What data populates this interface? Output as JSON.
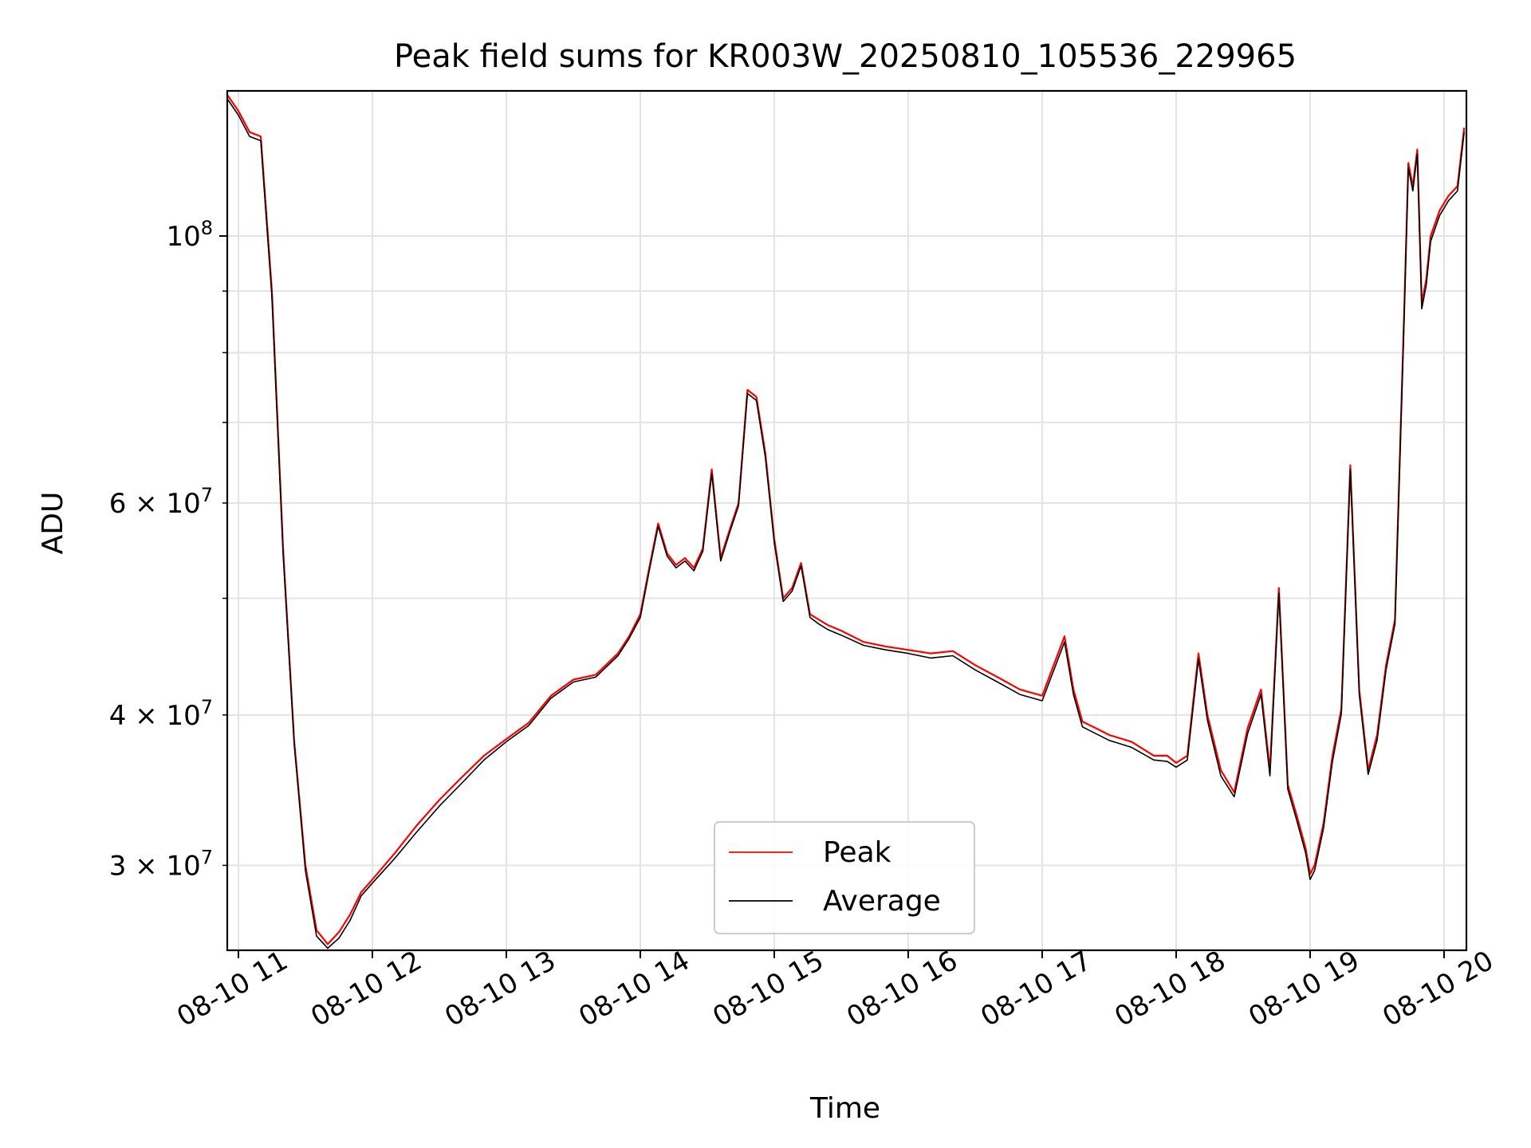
{
  "chart_data": {
    "type": "line",
    "title": "Peak field sums for KR003W_20250810_105536_229965",
    "xlabel": "Time",
    "ylabel": "ADU",
    "y_scale": "log",
    "grid": true,
    "legend_position": "bottom-center",
    "xlim": [
      "2025-08-10 10:55",
      "2025-08-10 20:10"
    ],
    "ylim": [
      25500000,
      132000000
    ],
    "x_ticks": [
      {
        "value": "2025-08-10 11:00",
        "label": "08-10 11"
      },
      {
        "value": "2025-08-10 12:00",
        "label": "08-10 12"
      },
      {
        "value": "2025-08-10 13:00",
        "label": "08-10 13"
      },
      {
        "value": "2025-08-10 14:00",
        "label": "08-10 14"
      },
      {
        "value": "2025-08-10 15:00",
        "label": "08-10 15"
      },
      {
        "value": "2025-08-10 16:00",
        "label": "08-10 16"
      },
      {
        "value": "2025-08-10 17:00",
        "label": "08-10 17"
      },
      {
        "value": "2025-08-10 18:00",
        "label": "08-10 18"
      },
      {
        "value": "2025-08-10 19:00",
        "label": "08-10 19"
      },
      {
        "value": "2025-08-10 20:00",
        "label": "08-10 20"
      }
    ],
    "y_ticks_major": [
      {
        "value": 100000000,
        "mantissa": "",
        "base": "10",
        "exp": "8"
      }
    ],
    "y_ticks_minor": [
      {
        "value": 30000000,
        "mantissa": "3",
        "base": "10",
        "exp": "7"
      },
      {
        "value": 40000000,
        "mantissa": "4",
        "base": "10",
        "exp": "7"
      },
      {
        "value": 50000000,
        "mantissa": "",
        "base": "",
        "exp": ""
      },
      {
        "value": 60000000,
        "mantissa": "6",
        "base": "10",
        "exp": "7"
      },
      {
        "value": 70000000,
        "mantissa": "",
        "base": "",
        "exp": ""
      },
      {
        "value": 80000000,
        "mantissa": "",
        "base": "",
        "exp": ""
      },
      {
        "value": 90000000,
        "mantissa": "",
        "base": "",
        "exp": ""
      }
    ],
    "series": [
      {
        "name": "Peak",
        "color": "#ff0000",
        "x": [
          "2025-08-10 10:55",
          "2025-08-10 11:00",
          "2025-08-10 11:05",
          "2025-08-10 11:10",
          "2025-08-10 11:15",
          "2025-08-10 11:20",
          "2025-08-10 11:25",
          "2025-08-10 11:30",
          "2025-08-10 11:35",
          "2025-08-10 11:40",
          "2025-08-10 11:45",
          "2025-08-10 11:50",
          "2025-08-10 11:55",
          "2025-08-10 12:00",
          "2025-08-10 12:10",
          "2025-08-10 12:20",
          "2025-08-10 12:30",
          "2025-08-10 12:40",
          "2025-08-10 12:50",
          "2025-08-10 13:00",
          "2025-08-10 13:10",
          "2025-08-10 13:20",
          "2025-08-10 13:30",
          "2025-08-10 13:40",
          "2025-08-10 13:50",
          "2025-08-10 13:55",
          "2025-08-10 14:00",
          "2025-08-10 14:04",
          "2025-08-10 14:08",
          "2025-08-10 14:12",
          "2025-08-10 14:16",
          "2025-08-10 14:20",
          "2025-08-10 14:24",
          "2025-08-10 14:28",
          "2025-08-10 14:32",
          "2025-08-10 14:36",
          "2025-08-10 14:40",
          "2025-08-10 14:44",
          "2025-08-10 14:48",
          "2025-08-10 14:52",
          "2025-08-10 14:56",
          "2025-08-10 15:00",
          "2025-08-10 15:04",
          "2025-08-10 15:08",
          "2025-08-10 15:12",
          "2025-08-10 15:16",
          "2025-08-10 15:20",
          "2025-08-10 15:24",
          "2025-08-10 15:30",
          "2025-08-10 15:40",
          "2025-08-10 15:50",
          "2025-08-10 16:00",
          "2025-08-10 16:10",
          "2025-08-10 16:20",
          "2025-08-10 16:30",
          "2025-08-10 16:40",
          "2025-08-10 16:50",
          "2025-08-10 17:00",
          "2025-08-10 17:10",
          "2025-08-10 17:14",
          "2025-08-10 17:18",
          "2025-08-10 17:24",
          "2025-08-10 17:30",
          "2025-08-10 17:40",
          "2025-08-10 17:50",
          "2025-08-10 17:56",
          "2025-08-10 18:00",
          "2025-08-10 18:05",
          "2025-08-10 18:10",
          "2025-08-10 18:14",
          "2025-08-10 18:20",
          "2025-08-10 18:26",
          "2025-08-10 18:32",
          "2025-08-10 18:38",
          "2025-08-10 18:42",
          "2025-08-10 18:46",
          "2025-08-10 18:50",
          "2025-08-10 18:54",
          "2025-08-10 18:58",
          "2025-08-10 19:00",
          "2025-08-10 19:02",
          "2025-08-10 19:06",
          "2025-08-10 19:10",
          "2025-08-10 19:14",
          "2025-08-10 19:18",
          "2025-08-10 19:22",
          "2025-08-10 19:26",
          "2025-08-10 19:30",
          "2025-08-10 19:34",
          "2025-08-10 19:38",
          "2025-08-10 19:42",
          "2025-08-10 19:44",
          "2025-08-10 19:46",
          "2025-08-10 19:48",
          "2025-08-10 19:50",
          "2025-08-10 19:52",
          "2025-08-10 19:54",
          "2025-08-10 19:58",
          "2025-08-10 20:02",
          "2025-08-10 20:06",
          "2025-08-10 20:09"
        ],
        "values": [
          131000000,
          127000000,
          122000000,
          121000000,
          90000000,
          55000000,
          38000000,
          30000000,
          26500000,
          25800000,
          26400000,
          27300000,
          28500000,
          29200000,
          30700000,
          32400000,
          34000000,
          35500000,
          37000000,
          38200000,
          39400000,
          41500000,
          42800000,
          43200000,
          45000000,
          46500000,
          48500000,
          53000000,
          57700000,
          54500000,
          53300000,
          54000000,
          53000000,
          55000000,
          64000000,
          54000000,
          57000000,
          60000000,
          74500000,
          73500000,
          66000000,
          56000000,
          50000000,
          51000000,
          53500000,
          48500000,
          48000000,
          47500000,
          47000000,
          46000000,
          45600000,
          45300000,
          45000000,
          45200000,
          44000000,
          43000000,
          42000000,
          41500000,
          46500000,
          42000000,
          39500000,
          39000000,
          38500000,
          38000000,
          37000000,
          37000000,
          36500000,
          37000000,
          45000000,
          40000000,
          36000000,
          34500000,
          39000000,
          42000000,
          36000000,
          51000000,
          35000000,
          33000000,
          31000000,
          29500000,
          30000000,
          32500000,
          37000000,
          40500000,
          64500000,
          42000000,
          36000000,
          38500000,
          44000000,
          48000000,
          85000000,
          115000000,
          110000000,
          118000000,
          88000000,
          92000000,
          100000000,
          105000000,
          108000000,
          110000000,
          123000000
        ]
      },
      {
        "name": "Average",
        "color": "#000000",
        "x": [
          "2025-08-10 10:55",
          "2025-08-10 11:00",
          "2025-08-10 11:05",
          "2025-08-10 11:10",
          "2025-08-10 11:15",
          "2025-08-10 11:20",
          "2025-08-10 11:25",
          "2025-08-10 11:30",
          "2025-08-10 11:35",
          "2025-08-10 11:40",
          "2025-08-10 11:45",
          "2025-08-10 11:50",
          "2025-08-10 11:55",
          "2025-08-10 12:00",
          "2025-08-10 12:10",
          "2025-08-10 12:20",
          "2025-08-10 12:30",
          "2025-08-10 12:40",
          "2025-08-10 12:50",
          "2025-08-10 13:00",
          "2025-08-10 13:10",
          "2025-08-10 13:20",
          "2025-08-10 13:30",
          "2025-08-10 13:40",
          "2025-08-10 13:50",
          "2025-08-10 13:55",
          "2025-08-10 14:00",
          "2025-08-10 14:04",
          "2025-08-10 14:08",
          "2025-08-10 14:12",
          "2025-08-10 14:16",
          "2025-08-10 14:20",
          "2025-08-10 14:24",
          "2025-08-10 14:28",
          "2025-08-10 14:32",
          "2025-08-10 14:36",
          "2025-08-10 14:40",
          "2025-08-10 14:44",
          "2025-08-10 14:48",
          "2025-08-10 14:52",
          "2025-08-10 14:56",
          "2025-08-10 15:00",
          "2025-08-10 15:04",
          "2025-08-10 15:08",
          "2025-08-10 15:12",
          "2025-08-10 15:16",
          "2025-08-10 15:20",
          "2025-08-10 15:24",
          "2025-08-10 15:30",
          "2025-08-10 15:40",
          "2025-08-10 15:50",
          "2025-08-10 16:00",
          "2025-08-10 16:10",
          "2025-08-10 16:20",
          "2025-08-10 16:30",
          "2025-08-10 16:40",
          "2025-08-10 16:50",
          "2025-08-10 17:00",
          "2025-08-10 17:10",
          "2025-08-10 17:14",
          "2025-08-10 17:18",
          "2025-08-10 17:24",
          "2025-08-10 17:30",
          "2025-08-10 17:40",
          "2025-08-10 17:50",
          "2025-08-10 17:56",
          "2025-08-10 18:00",
          "2025-08-10 18:05",
          "2025-08-10 18:10",
          "2025-08-10 18:14",
          "2025-08-10 18:20",
          "2025-08-10 18:26",
          "2025-08-10 18:32",
          "2025-08-10 18:38",
          "2025-08-10 18:42",
          "2025-08-10 18:46",
          "2025-08-10 18:50",
          "2025-08-10 18:54",
          "2025-08-10 18:58",
          "2025-08-10 19:00",
          "2025-08-10 19:02",
          "2025-08-10 19:06",
          "2025-08-10 19:10",
          "2025-08-10 19:14",
          "2025-08-10 19:18",
          "2025-08-10 19:22",
          "2025-08-10 19:26",
          "2025-08-10 19:30",
          "2025-08-10 19:34",
          "2025-08-10 19:38",
          "2025-08-10 19:42",
          "2025-08-10 19:44",
          "2025-08-10 19:46",
          "2025-08-10 19:48",
          "2025-08-10 19:50",
          "2025-08-10 19:52",
          "2025-08-10 19:54",
          "2025-08-10 19:58",
          "2025-08-10 20:02",
          "2025-08-10 20:06",
          "2025-08-10 20:09"
        ],
        "values": [
          130000000,
          126000000,
          121000000,
          120000000,
          89000000,
          54500000,
          37800000,
          29700000,
          26200000,
          25600000,
          26100000,
          27000000,
          28300000,
          29000000,
          30400000,
          32000000,
          33600000,
          35100000,
          36700000,
          38000000,
          39200000,
          41300000,
          42600000,
          43000000,
          44800000,
          46300000,
          48200000,
          52700000,
          57400000,
          54200000,
          53000000,
          53700000,
          52700000,
          54700000,
          63500000,
          53700000,
          56700000,
          59700000,
          74000000,
          73000000,
          65500000,
          55600000,
          49700000,
          50700000,
          53200000,
          48200000,
          47600000,
          47100000,
          46600000,
          45700000,
          45300000,
          45000000,
          44600000,
          44800000,
          43600000,
          42600000,
          41600000,
          41100000,
          46000000,
          41600000,
          39100000,
          38600000,
          38100000,
          37600000,
          36700000,
          36600000,
          36200000,
          36700000,
          44500000,
          39600000,
          35600000,
          34200000,
          38600000,
          41600000,
          35600000,
          50500000,
          34700000,
          32700000,
          30700000,
          29200000,
          29700000,
          32200000,
          36600000,
          40100000,
          64000000,
          41600000,
          35700000,
          38100000,
          43600000,
          47600000,
          84000000,
          114000000,
          109000000,
          117000000,
          87000000,
          91000000,
          99000000,
          104000000,
          107000000,
          109000000,
          122000000
        ]
      }
    ]
  }
}
